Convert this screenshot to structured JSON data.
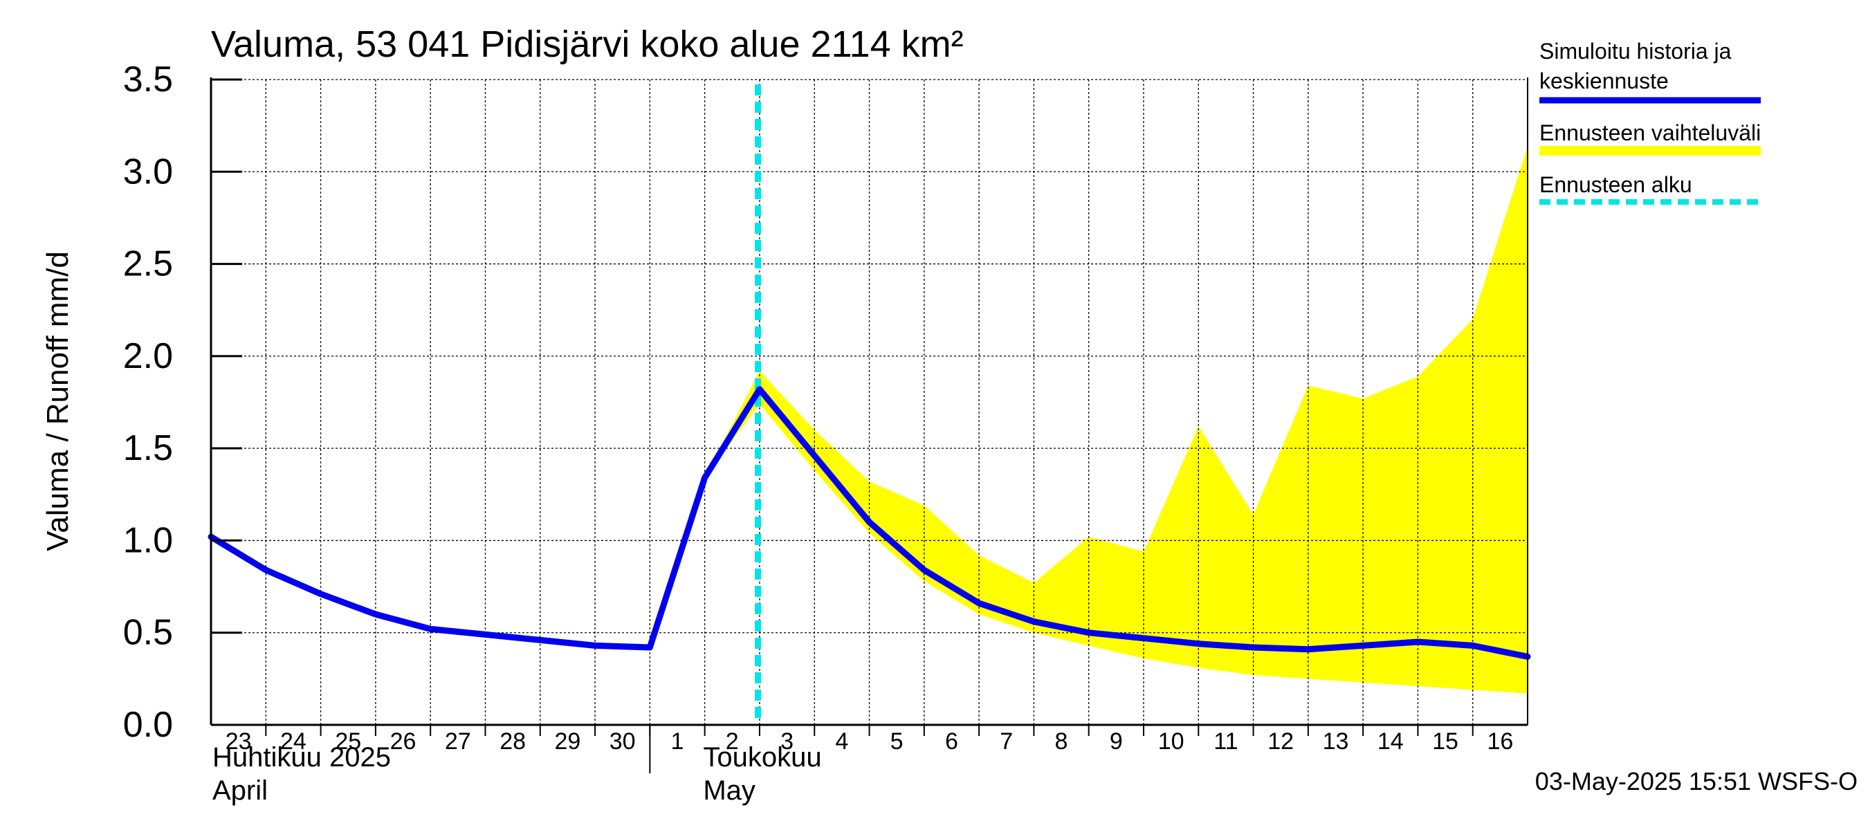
{
  "chart_data": {
    "type": "line",
    "title": "Valuma, 53 041 Pidisjärvi koko alue 2114 km²",
    "ylabel": "Valuma / Runoff     mm/d",
    "ylim": [
      0,
      3.5
    ],
    "yticks": [
      0.0,
      0.5,
      1.0,
      1.5,
      2.0,
      2.5,
      3.0,
      3.5
    ],
    "ytick_labels": [
      "0.0",
      "0.5",
      "1.0",
      "1.5",
      "2.0",
      "2.5",
      "3.0",
      "3.5"
    ],
    "day_labels": [
      "23",
      "24",
      "25",
      "26",
      "27",
      "28",
      "29",
      "30",
      "1",
      "2",
      "3",
      "4",
      "5",
      "6",
      "7",
      "8",
      "9",
      "10",
      "11",
      "12",
      "13",
      "14",
      "15",
      "16"
    ],
    "month_labels": [
      {
        "line1": "Huhtikuu  2025",
        "line2": "April"
      },
      {
        "line1": "Toukokuu",
        "line2": "May"
      }
    ],
    "forecast_start": "2025-05-03",
    "series": [
      {
        "name": "Simuloitu historia ja keskiennuste",
        "color": "#0000ee",
        "x": [
          "2025-04-23",
          "2025-04-24",
          "2025-04-25",
          "2025-04-26",
          "2025-04-27",
          "2025-04-28",
          "2025-04-29",
          "2025-04-30",
          "2025-05-01",
          "2025-05-02",
          "2025-05-03",
          "2025-05-04",
          "2025-05-05",
          "2025-05-06",
          "2025-05-07",
          "2025-05-08",
          "2025-05-09",
          "2025-05-10",
          "2025-05-11",
          "2025-05-12",
          "2025-05-13",
          "2025-05-14",
          "2025-05-15",
          "2025-05-16",
          "2025-05-17"
        ],
        "values": [
          1.02,
          0.84,
          0.71,
          0.6,
          0.52,
          0.49,
          0.46,
          0.43,
          0.42,
          1.34,
          1.82,
          1.46,
          1.1,
          0.84,
          0.66,
          0.56,
          0.5,
          0.47,
          0.44,
          0.42,
          0.41,
          0.43,
          0.45,
          0.43,
          0.37
        ]
      },
      {
        "name": "Ennusteen vaihteluväli",
        "color": "#ffff00",
        "x": [
          "2025-05-02",
          "2025-05-03",
          "2025-05-04",
          "2025-05-05",
          "2025-05-06",
          "2025-05-07",
          "2025-05-08",
          "2025-05-09",
          "2025-05-10",
          "2025-05-11",
          "2025-05-12",
          "2025-05-13",
          "2025-05-14",
          "2025-05-15",
          "2025-05-16",
          "2025-05-17"
        ],
        "upper": [
          1.34,
          1.92,
          1.6,
          1.32,
          1.19,
          0.92,
          0.77,
          1.02,
          0.94,
          1.62,
          1.14,
          1.84,
          1.77,
          1.89,
          2.2,
          3.14
        ],
        "lower": [
          1.34,
          1.74,
          1.38,
          1.04,
          0.78,
          0.6,
          0.5,
          0.43,
          0.36,
          0.31,
          0.27,
          0.25,
          0.23,
          0.21,
          0.19,
          0.17
        ]
      }
    ],
    "legend": {
      "placement": "right",
      "items": [
        {
          "label_lines": [
            "Simuloitu historia ja",
            "keskiennuste"
          ],
          "style": "line",
          "color": "#0000ee"
        },
        {
          "label_lines": [
            "Ennusteen vaihteluväli"
          ],
          "style": "band",
          "color": "#ffff00"
        },
        {
          "label_lines": [
            "Ennusteen alku"
          ],
          "style": "dashed",
          "color": "#00e5e5"
        }
      ]
    },
    "grid": true
  },
  "footer": {
    "timestamp": "03-May-2025 15:51 WSFS-O"
  }
}
